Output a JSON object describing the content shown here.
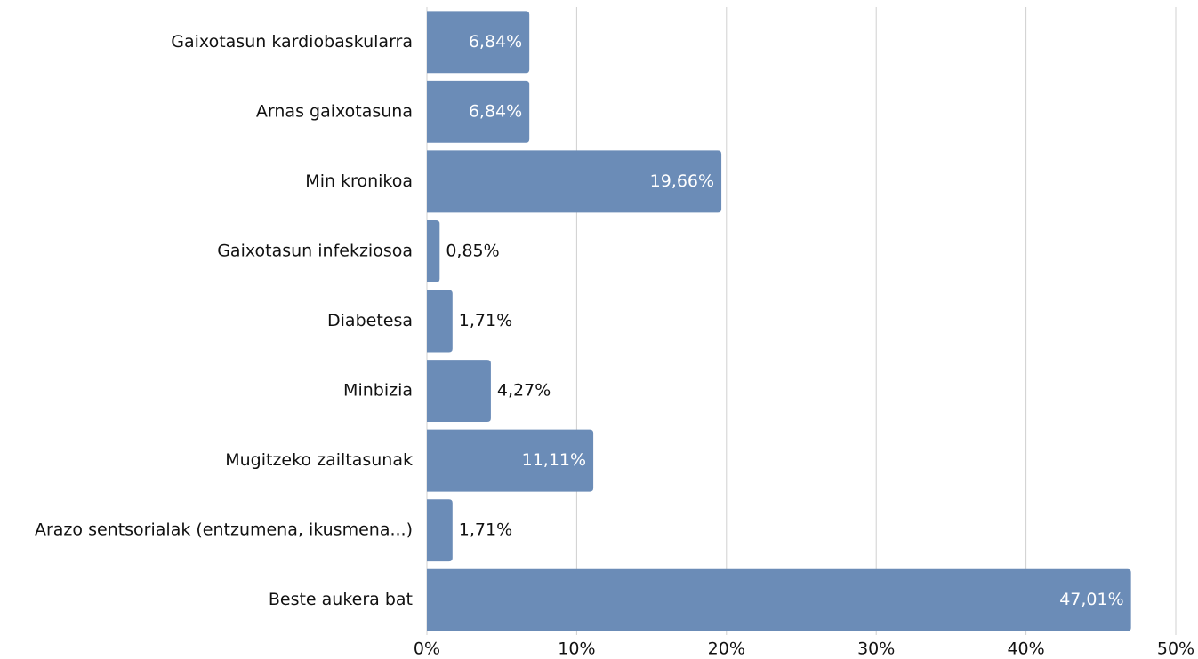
{
  "chart_data": {
    "type": "barh",
    "categories": [
      "Gaixotasun kardiobaskularra",
      "Arnas gaixotasuna",
      "Min kronikoa",
      "Gaixotasun infekziosoa",
      "Diabetesa",
      "Minbizia",
      "Mugitzeko zailtasunak",
      "Arazo sentsorialak (entzumena, ikusmena...)",
      "Beste aukera bat"
    ],
    "values": [
      6.84,
      6.84,
      19.66,
      0.85,
      1.71,
      4.27,
      11.11,
      1.71,
      47.01
    ],
    "value_labels": [
      "6,84%",
      "6,84%",
      "19,66%",
      "0,85%",
      "1,71%",
      "4,27%",
      "11,11%",
      "1,71%",
      "47,01%"
    ],
    "color": "#6b8cb7",
    "xlim": [
      0,
      50
    ],
    "xticks": [
      {
        "value": 0,
        "label": "0%"
      },
      {
        "value": 10,
        "label": "10%"
      },
      {
        "value": 20,
        "label": "20%"
      },
      {
        "value": 30,
        "label": "30%"
      },
      {
        "value": 40,
        "label": "40%"
      },
      {
        "value": 50,
        "label": "50%"
      }
    ],
    "grid": true
  }
}
